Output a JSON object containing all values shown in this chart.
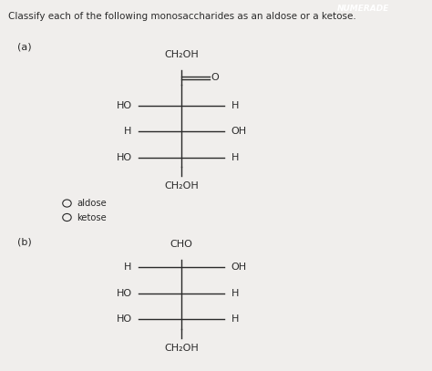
{
  "title": "Classify each of the following monosaccharides as an aldose or a ketose.",
  "bg_color": "#f0eeec",
  "text_color": "#2a2a2a",
  "header_bar_color": "#1a6abf",
  "header_bar_text": "NUMERADE",
  "section_a_label": "(a)",
  "section_b_label": "(b)",
  "radio_aldose": "aldose",
  "radio_ketose": "ketose",
  "part_a": {
    "top_label": "CH₂OH",
    "double_bond_right": "O",
    "rows": [
      {
        "left": "HO",
        "right": "H"
      },
      {
        "left": "H",
        "right": "OH"
      },
      {
        "left": "HO",
        "right": "H"
      }
    ],
    "bottom_label": "CH₂OH"
  },
  "part_b": {
    "top_label": "CHO",
    "rows": [
      {
        "left": "H",
        "right": "OH"
      },
      {
        "left": "HO",
        "right": "H"
      },
      {
        "left": "HO",
        "right": "H"
      }
    ],
    "bottom_label": "CH₂OH"
  },
  "figsize": [
    4.74,
    4.07
  ],
  "dpi": 100
}
